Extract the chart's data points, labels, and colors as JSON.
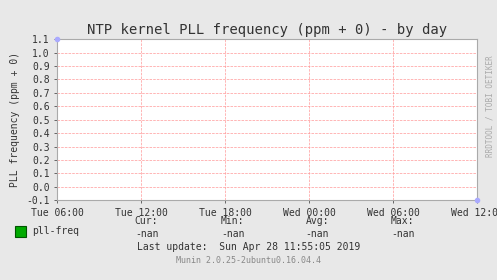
{
  "title": "NTP kernel PLL frequency (ppm + 0) - by day",
  "ylabel": "PLL frequency (ppm + 0)",
  "ylim": [
    -0.1,
    1.1
  ],
  "yticks": [
    -0.1,
    0.0,
    0.1,
    0.2,
    0.3,
    0.4,
    0.5,
    0.6,
    0.7,
    0.8,
    0.9,
    1.0,
    1.1
  ],
  "xtick_labels": [
    "Tue 06:00",
    "Tue 12:00",
    "Tue 18:00",
    "Wed 00:00",
    "Wed 06:00",
    "Wed 12:00"
  ],
  "bg_color": "#e8e8e8",
  "plot_bg_color": "#ffffff",
  "grid_color": "#ff9999",
  "border_color": "#aaaaaa",
  "title_color": "#333333",
  "label_color": "#333333",
  "tick_color": "#333333",
  "legend_label": "pll-freq",
  "legend_color": "#00aa00",
  "stats_cur": "-nan",
  "stats_min": "-nan",
  "stats_avg": "-nan",
  "stats_max": "-nan",
  "last_update": "Last update:  Sun Apr 28 11:55:05 2019",
  "munin_version": "Munin 2.0.25-2ubuntu0.16.04.4",
  "watermark": "RRDTOOL / TOBI OETIKER",
  "font_family": "DejaVu Sans Mono",
  "title_fontsize": 10,
  "axis_fontsize": 7,
  "tick_fontsize": 7,
  "stats_fontsize": 7,
  "watermark_fontsize": 5.5
}
